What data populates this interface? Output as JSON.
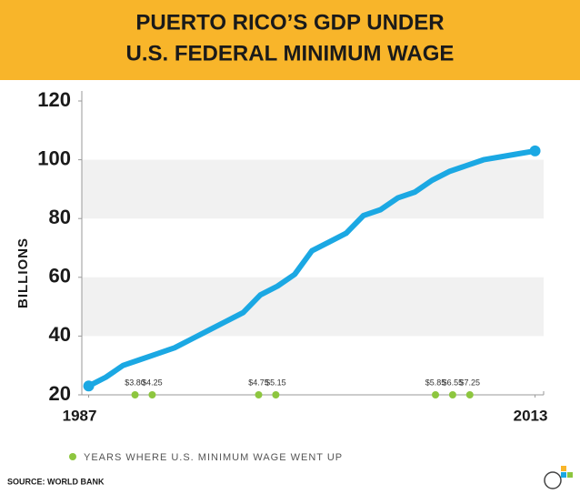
{
  "chart_data": {
    "type": "line",
    "title": [
      "PUERTO RICO’S GDP UNDER",
      "U.S. FEDERAL MINIMUM WAGE"
    ],
    "y_label": "BILLIONS",
    "x": [
      1987,
      1988,
      1989,
      1990,
      1991,
      1992,
      1993,
      1994,
      1995,
      1996,
      1997,
      1998,
      1999,
      2000,
      2001,
      2002,
      2003,
      2004,
      2005,
      2006,
      2007,
      2008,
      2009,
      2010,
      2011,
      2012,
      2013
    ],
    "series": [
      {
        "color": "#1ba8e3",
        "values": [
          23,
          26,
          30,
          32,
          34,
          36,
          39,
          42,
          45,
          48,
          54,
          57,
          61,
          69,
          72,
          75,
          81,
          83,
          87,
          89,
          93,
          96,
          98,
          100,
          101,
          102,
          103
        ]
      }
    ],
    "xlim": [
      1986.6,
      2013.5
    ],
    "xticks": [
      1987,
      2013
    ],
    "ylim": [
      20,
      120
    ],
    "yticks": [
      20,
      40,
      60,
      80,
      100,
      120
    ],
    "banded_grid": true,
    "wage_increases": {
      "color": "#8dc63f",
      "x": [
        1989.7,
        1990.7,
        1996.9,
        1997.9,
        2007.2,
        2008.2,
        2009.2
      ],
      "labels": [
        "$3.80",
        "$4.25",
        "$4.75",
        "$5.15",
        "$5.85",
        "$6.55",
        "$7.25"
      ],
      "legend": "YEARS WHERE U.S. MINIMUM WAGE WENT UP"
    },
    "source": "SOURCE: WORLD BANK"
  }
}
